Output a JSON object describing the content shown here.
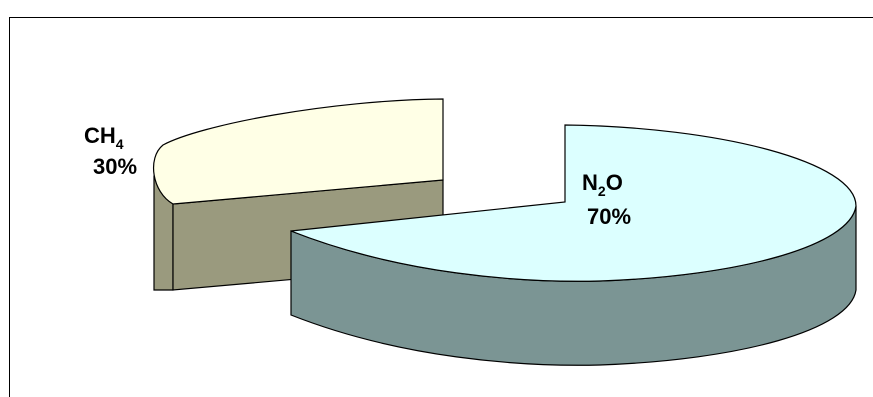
{
  "chart_data": {
    "type": "pie",
    "style": "3d-exploded",
    "slices": [
      {
        "label": "CH₄",
        "label_base": "CH",
        "label_sub": "4",
        "value": 30,
        "value_label": "30%",
        "top_color": "#ffffe6",
        "side_color": "#9a9a7e"
      },
      {
        "label": "N₂O",
        "label_base": "N",
        "label_sub": "2",
        "label_tail": "O",
        "value": 70,
        "value_label": "70%",
        "top_color": "#dcffff",
        "side_color": "#7b9594"
      }
    ],
    "title": "",
    "legend": "none"
  }
}
